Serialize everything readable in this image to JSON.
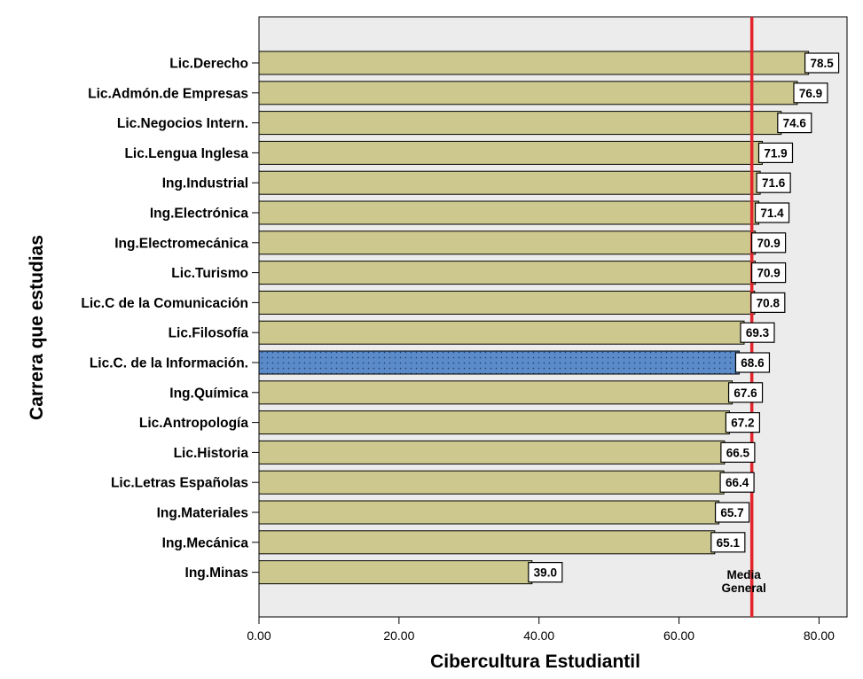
{
  "chart_data": {
    "type": "bar",
    "orientation": "horizontal",
    "categories": [
      "Lic.Derecho",
      "Lic.Admón.de Empresas",
      "Lic.Negocios Intern.",
      "Lic.Lengua Inglesa",
      "Ing.Industrial",
      "Ing.Electrónica",
      "Ing.Electromecánica",
      "Lic.Turismo",
      "Lic.C de la Comunicación",
      "Lic.Filosofía",
      "Lic.C. de la Información.",
      "Ing.Química",
      "Lic.Antropología",
      "Lic.Historia",
      "Lic.Letras Españolas",
      "Ing.Materiales",
      "Ing.Mecánica",
      "Ing.Minas"
    ],
    "values": [
      78.5,
      76.9,
      74.6,
      71.9,
      71.6,
      71.4,
      70.9,
      70.9,
      70.8,
      69.3,
      68.6,
      67.6,
      67.2,
      66.5,
      66.4,
      65.7,
      65.1,
      39.0
    ],
    "value_labels": [
      "78.5",
      "76.9",
      "74.6",
      "71.9",
      "71.6",
      "71.4",
      "70.9",
      "70.9",
      "70.8",
      "69.3",
      "68.6",
      "67.6",
      "67.2",
      "66.5",
      "66.4",
      "65.7",
      "65.1",
      "39.0"
    ],
    "highlighted_category": "Lic.C. de la Información.",
    "xlabel": "Cibercultura Estudiantil",
    "ylabel": "Carrera que estudias",
    "xlim": [
      0,
      84
    ],
    "x_ticks": [
      0,
      20,
      40,
      60,
      80
    ],
    "x_tick_labels": [
      "0.00",
      "20.00",
      "40.00",
      "60.00",
      "80.00"
    ],
    "reference_line": {
      "value": 70.4,
      "label_lines": [
        "Media",
        "General"
      ],
      "color": "#e3242b"
    },
    "colors": {
      "bar": "#cdc98e",
      "highlight_bar": "#5b8bc9",
      "plot_background": "#ececec"
    },
    "grid": false
  }
}
